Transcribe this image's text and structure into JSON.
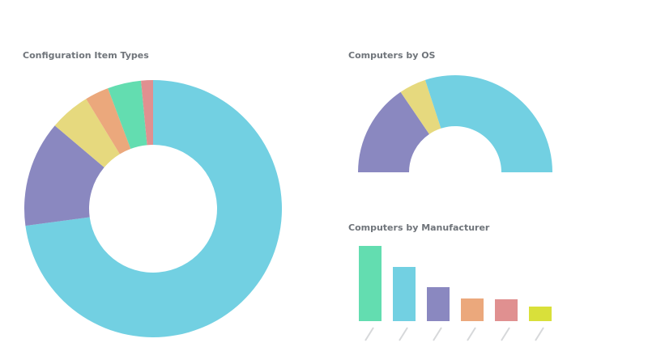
{
  "chart_data": [
    {
      "type": "donut",
      "title": "Configuration Item Types",
      "values": [
        72.8,
        13.3,
        5.1,
        3,
        4.2,
        1.5
      ],
      "colors": [
        "#72d0e2",
        "#8a88c0",
        "#e6d97e",
        "#eba87c",
        "#63ddb0",
        "#e09090"
      ]
    },
    {
      "type": "donut",
      "half": true,
      "title": "Computers by OS",
      "values": [
        31,
        9,
        60
      ],
      "colors": [
        "#8a88c0",
        "#e6d97e",
        "#72d0e2"
      ]
    },
    {
      "type": "bar",
      "title": "Computers by Manufacturer",
      "values": [
        93,
        67,
        42,
        28,
        27,
        18
      ],
      "colors": [
        "#63ddb0",
        "#72d0e2",
        "#8a88c0",
        "#eba87c",
        "#e09090",
        "#d9e03a"
      ]
    }
  ]
}
